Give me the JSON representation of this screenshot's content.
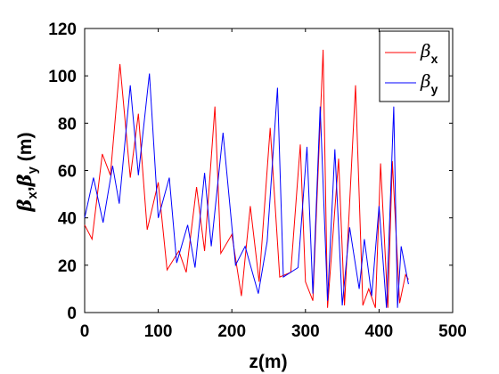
{
  "chart_data": {
    "type": "line",
    "xlabel": "z(m)",
    "ylabel": {
      "base": "β",
      "sub1": "x",
      "sep": ",",
      "sub2": "y",
      "unit": " (m)"
    },
    "xlim": [
      0,
      500
    ],
    "ylim": [
      0,
      120
    ],
    "xticks": [
      0,
      100,
      200,
      300,
      400,
      500
    ],
    "yticks": [
      0,
      20,
      40,
      60,
      80,
      100,
      120
    ],
    "grid": false,
    "legend_position": "top-right",
    "series": [
      {
        "name": "β",
        "name_sub": "x",
        "color": "#ff0000",
        "x": [
          0,
          10,
          24,
          35,
          48,
          62,
          73,
          85,
          100,
          112,
          128,
          138,
          152,
          163,
          177,
          185,
          200,
          213,
          225,
          237,
          252,
          265,
          280,
          293,
          300,
          310,
          324,
          330,
          345,
          353,
          368,
          378,
          386,
          395,
          402,
          412,
          418,
          428,
          436,
          440
        ],
        "y": [
          37,
          31,
          67,
          58,
          105,
          57,
          84,
          35,
          55,
          18,
          26,
          17,
          53,
          26,
          87,
          25,
          33,
          7,
          45,
          13,
          78,
          15,
          17,
          71,
          13,
          5,
          111,
          2,
          65,
          3,
          96,
          3,
          10,
          2,
          63,
          2,
          64,
          4,
          16,
          14
        ]
      },
      {
        "name": "β",
        "name_sub": "y",
        "color": "#0000ff",
        "x": [
          0,
          12,
          25,
          38,
          47,
          62,
          73,
          88,
          100,
          115,
          125,
          140,
          150,
          163,
          172,
          188,
          205,
          218,
          236,
          248,
          262,
          270,
          290,
          302,
          310,
          320,
          330,
          340,
          350,
          360,
          373,
          380,
          390,
          400,
          410,
          420,
          425,
          430,
          440
        ],
        "y": [
          40,
          57,
          38,
          62,
          46,
          96,
          58,
          101,
          40,
          57,
          21,
          37,
          19,
          59,
          28,
          76,
          20,
          28,
          8,
          30,
          95,
          15,
          19,
          70,
          8,
          87,
          5,
          69,
          3,
          36,
          10,
          31,
          7,
          45,
          2,
          87,
          2,
          28,
          12
        ]
      }
    ]
  }
}
